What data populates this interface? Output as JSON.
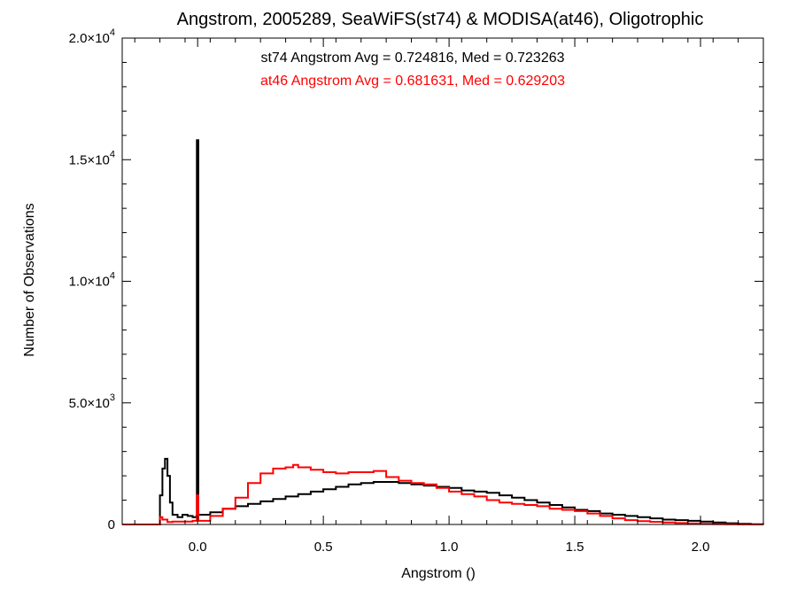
{
  "chart_data": {
    "type": "line",
    "title": "Angstrom, 2005289, SeaWiFS(st74) & MODISA(at46), Oligotrophic",
    "xlabel": "Angstrom ()",
    "ylabel": "Number of Observations",
    "xlim": [
      -0.3,
      2.25
    ],
    "ylim": [
      0,
      20000
    ],
    "grid": false,
    "legend_placement": "top-center",
    "x_ticks": [
      {
        "value": 0.0,
        "label": "0.0"
      },
      {
        "value": 0.5,
        "label": "0.5"
      },
      {
        "value": 1.0,
        "label": "1.0"
      },
      {
        "value": 1.5,
        "label": "1.5"
      },
      {
        "value": 2.0,
        "label": "2.0"
      }
    ],
    "y_ticks": [
      {
        "value": 0,
        "mant": "0",
        "exp": ""
      },
      {
        "value": 5000,
        "mant": "5.0×10",
        "exp": "3"
      },
      {
        "value": 10000,
        "mant": "1.0×10",
        "exp": "4"
      },
      {
        "value": 15000,
        "mant": "1.5×10",
        "exp": "4"
      },
      {
        "value": 20000,
        "mant": "2.0×10",
        "exp": "4"
      }
    ],
    "annotations": [
      {
        "text": "st74 Angstrom Avg = 0.724816, Med = 0.723263",
        "color": "#000000"
      },
      {
        "text": "at46 Angstrom Avg = 0.681631, Med = 0.629203",
        "color": "#ff0000"
      }
    ],
    "series": [
      {
        "color": "#000000",
        "x": [
          -0.3,
          -0.16,
          -0.15,
          -0.14,
          -0.13,
          -0.12,
          -0.11,
          -0.1,
          -0.08,
          -0.06,
          -0.04,
          -0.02,
          -0.005,
          -0.003,
          0.003,
          0.05,
          0.1,
          0.15,
          0.2,
          0.25,
          0.3,
          0.35,
          0.4,
          0.45,
          0.5,
          0.55,
          0.6,
          0.65,
          0.7,
          0.75,
          0.8,
          0.85,
          0.9,
          0.95,
          1.0,
          1.05,
          1.1,
          1.15,
          1.2,
          1.25,
          1.3,
          1.35,
          1.4,
          1.45,
          1.5,
          1.55,
          1.6,
          1.65,
          1.7,
          1.75,
          1.8,
          1.85,
          1.9,
          1.95,
          2.0,
          2.05,
          2.1,
          2.15,
          2.2,
          2.25
        ],
        "y": [
          0,
          0,
          1200,
          2300,
          2700,
          2000,
          900,
          400,
          300,
          400,
          350,
          300,
          350,
          15800,
          400,
          500,
          650,
          750,
          850,
          950,
          1050,
          1150,
          1250,
          1350,
          1450,
          1550,
          1650,
          1700,
          1750,
          1750,
          1700,
          1650,
          1600,
          1550,
          1500,
          1400,
          1350,
          1300,
          1200,
          1100,
          1000,
          900,
          800,
          700,
          600,
          550,
          450,
          400,
          350,
          300,
          250,
          200,
          180,
          150,
          120,
          80,
          50,
          30,
          10,
          0
        ]
      },
      {
        "color": "#ff0000",
        "x": [
          -0.3,
          -0.16,
          -0.15,
          -0.14,
          -0.12,
          -0.1,
          -0.06,
          -0.02,
          -0.005,
          -0.003,
          0.003,
          0.05,
          0.1,
          0.15,
          0.2,
          0.25,
          0.3,
          0.35,
          0.38,
          0.4,
          0.45,
          0.5,
          0.55,
          0.6,
          0.65,
          0.7,
          0.75,
          0.8,
          0.85,
          0.9,
          0.95,
          1.0,
          1.05,
          1.1,
          1.15,
          1.2,
          1.25,
          1.3,
          1.35,
          1.4,
          1.45,
          1.5,
          1.55,
          1.6,
          1.65,
          1.7,
          1.75,
          1.8,
          1.85,
          1.9,
          1.95,
          2.0,
          2.05,
          2.1,
          2.15,
          2.25
        ],
        "y": [
          0,
          0,
          300,
          200,
          100,
          120,
          120,
          150,
          150,
          1200,
          150,
          350,
          650,
          1100,
          1700,
          2100,
          2300,
          2350,
          2450,
          2350,
          2250,
          2150,
          2100,
          2150,
          2150,
          2200,
          1950,
          1800,
          1700,
          1650,
          1500,
          1350,
          1250,
          1150,
          1000,
          900,
          850,
          800,
          750,
          650,
          600,
          550,
          450,
          350,
          250,
          180,
          140,
          110,
          80,
          60,
          40,
          25,
          15,
          8,
          3,
          0
        ]
      }
    ]
  }
}
